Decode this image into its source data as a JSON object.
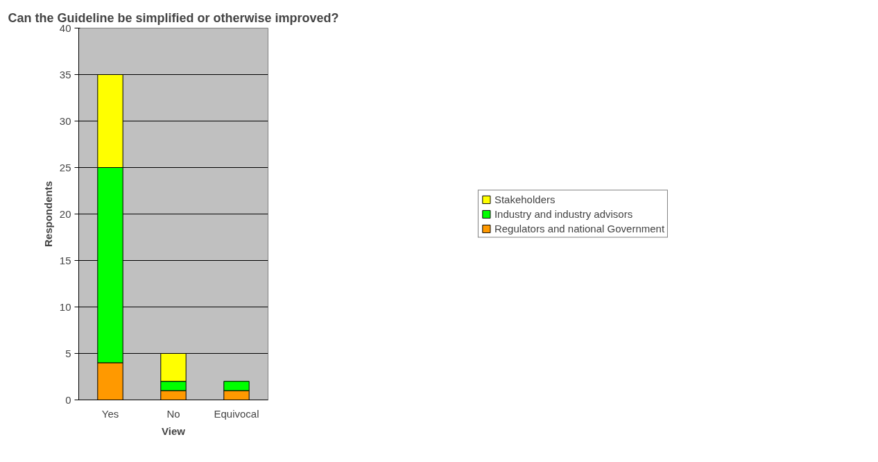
{
  "chart_data": {
    "type": "bar",
    "title": "Can the Guideline be simplified or otherwise improved?",
    "xlabel": "View",
    "ylabel": "Respondents",
    "categories": [
      "Yes",
      "No",
      "Equivocal"
    ],
    "series": [
      {
        "name": "Regulators and national Government",
        "color": "#ff9900",
        "values": [
          4,
          1,
          1
        ]
      },
      {
        "name": "Industry and industry advisors",
        "color": "#00ff00",
        "values": [
          21,
          1,
          1
        ]
      },
      {
        "name": "Stakeholders",
        "color": "#ffff00",
        "values": [
          10,
          3,
          0
        ]
      }
    ],
    "stacked": true,
    "ylim": [
      0,
      40
    ],
    "yticks": [
      0,
      5,
      10,
      15,
      20,
      25,
      30,
      35,
      40
    ],
    "grid": "y",
    "legend": "right"
  }
}
